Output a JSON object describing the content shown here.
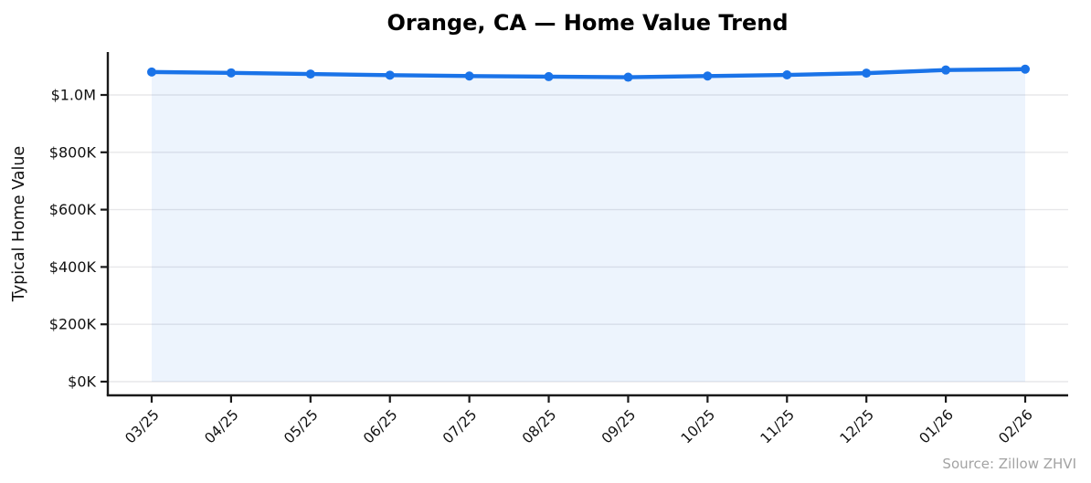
{
  "chart_data": {
    "type": "line",
    "title": "Orange, CA — Home Value Trend",
    "ylabel": "Typical Home Value",
    "xlabel": "",
    "source": "Source: Zillow ZHVI",
    "legend": "none",
    "grid": "horizontal",
    "categories": [
      "03/25",
      "04/25",
      "05/25",
      "06/25",
      "07/25",
      "08/25",
      "09/25",
      "10/25",
      "11/25",
      "12/25",
      "01/26",
      "02/26"
    ],
    "series": [
      {
        "name": "Typical Home Value",
        "values": [
          1080000,
          1077000,
          1073000,
          1069000,
          1066000,
          1064000,
          1062000,
          1066000,
          1070000,
          1076000,
          1087000,
          1090000
        ]
      }
    ],
    "y_ticks": [
      {
        "value": 0,
        "label": "$0K"
      },
      {
        "value": 200000,
        "label": "$200K"
      },
      {
        "value": 400000,
        "label": "$400K"
      },
      {
        "value": 600000,
        "label": "$600K"
      },
      {
        "value": 800000,
        "label": "$800K"
      },
      {
        "value": 1000000,
        "label": "$1.0M"
      }
    ],
    "ylim": [
      0,
      1150000
    ],
    "colors": {
      "line": "#1a73e8",
      "marker": "#1a73e8",
      "area_fill": "rgba(26,115,232,0.08)",
      "gridline": "#e7e7ea",
      "axis": "#1a1a1a",
      "source_text": "#a3a3a3"
    }
  }
}
